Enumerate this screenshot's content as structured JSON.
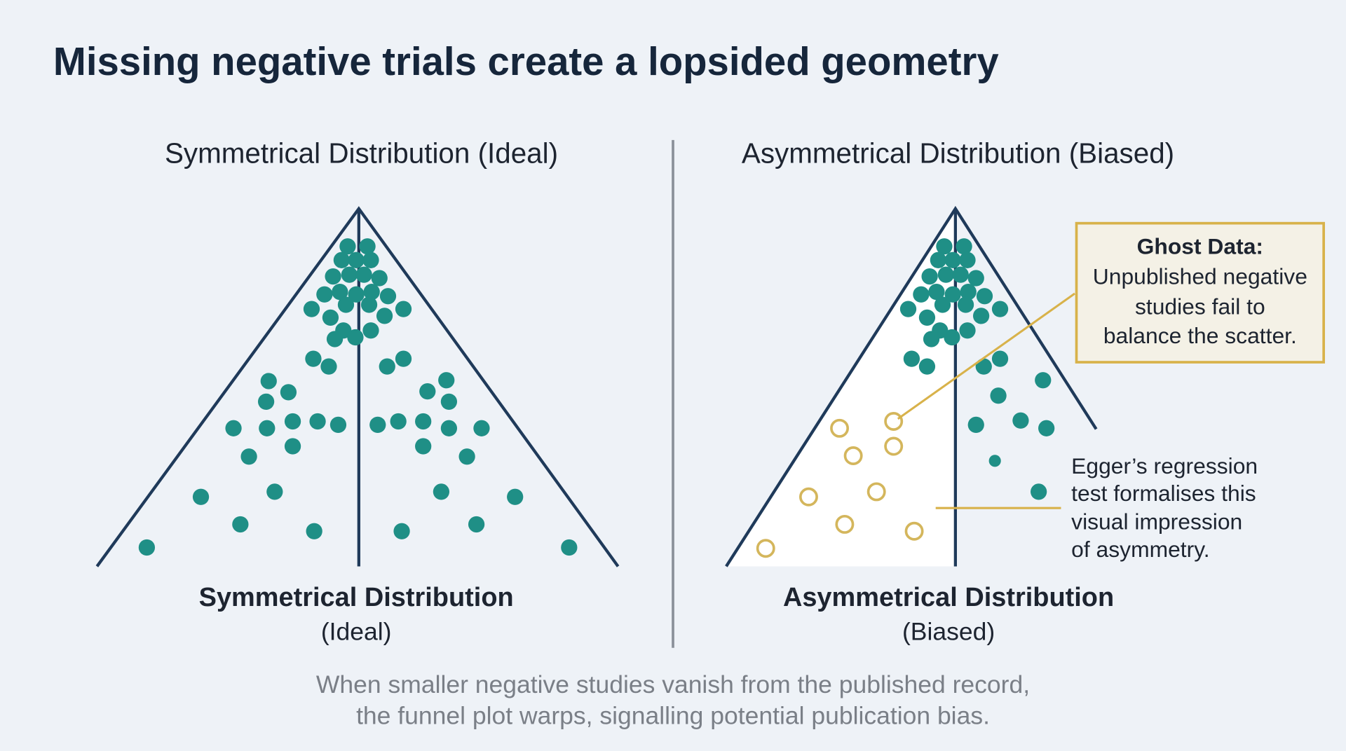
{
  "header": {
    "title": "Missing negative trials create a lopsided geometry"
  },
  "left_panel": {
    "heading": "Symmetrical Distribution (Ideal)",
    "caption_title": "Symmetrical Distribution",
    "caption_subtitle": "(Ideal)"
  },
  "right_panel": {
    "heading": "Asymmetrical Distribution (Biased)",
    "caption_title": "Asymmetrical Distribution",
    "caption_subtitle": "(Biased)",
    "ghost_callout": {
      "title": "Ghost Data:",
      "lines": [
        "Unpublished negative",
        "studies fail to",
        "balance the scatter."
      ]
    },
    "egger_note": {
      "lines": [
        "Egger’s regression",
        "test formalises this",
        "visual impression",
        "of asymmetry."
      ]
    }
  },
  "footer": {
    "lines": [
      "When smaller negative studies vanish from the published record,",
      "the funnel plot warps, signalling potential publication bias."
    ]
  }
}
